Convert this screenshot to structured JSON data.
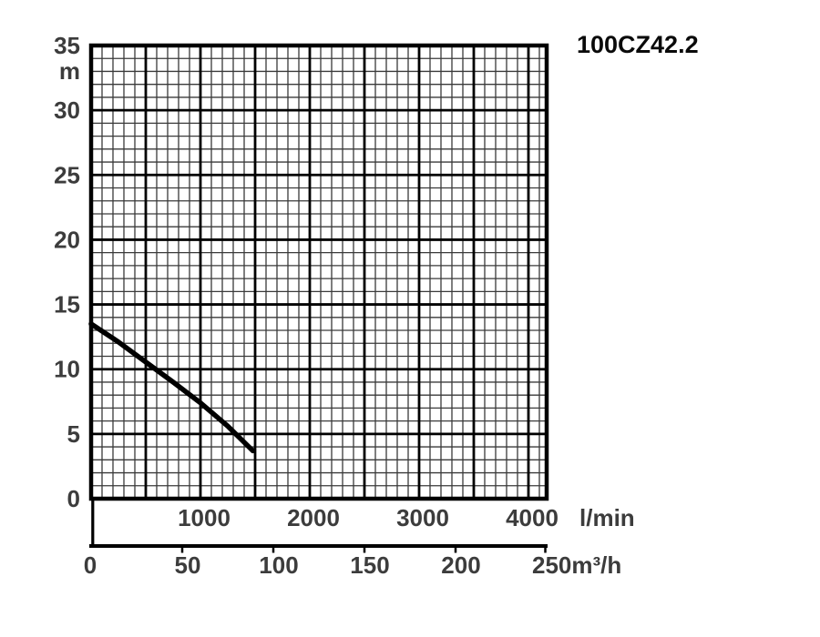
{
  "title": "100CZ42.2",
  "chart_data": {
    "type": "line",
    "title": "100CZ42.2",
    "legend": "none",
    "grid": "minor and major gridlines on both axes",
    "y_axis": {
      "unit": "m",
      "ticks": [
        35,
        30,
        25,
        20,
        15,
        10,
        5,
        0
      ],
      "range": [
        0,
        35
      ],
      "minor_step": 1,
      "major_step": 5
    },
    "x_axis_lmin": {
      "unit": "l/min",
      "ticks": [
        1000,
        2000,
        3000,
        4000
      ],
      "range": [
        0,
        4167
      ],
      "minor_step": 100,
      "major_step": 500
    },
    "x_axis_m3h": {
      "unit": "m³/h",
      "ticks": [
        0,
        50,
        100,
        150,
        200,
        250
      ],
      "range": [
        0,
        250
      ]
    },
    "series": [
      {
        "name": "100CZ42.2 head curve",
        "x_lmin": [
          0,
          250,
          500,
          750,
          1000,
          1250,
          1480
        ],
        "y_m": [
          13.5,
          12.1,
          10.55,
          9.0,
          7.4,
          5.6,
          3.7
        ]
      }
    ],
    "colors": {
      "curve": "#000000",
      "grid_minor": "#3a3a3a",
      "grid_major": "#000000",
      "border": "#000000",
      "axis_line": "#000000",
      "tick_label": "#3c3c3c",
      "title": "#0a0a0a",
      "background": "#ffffff"
    }
  }
}
